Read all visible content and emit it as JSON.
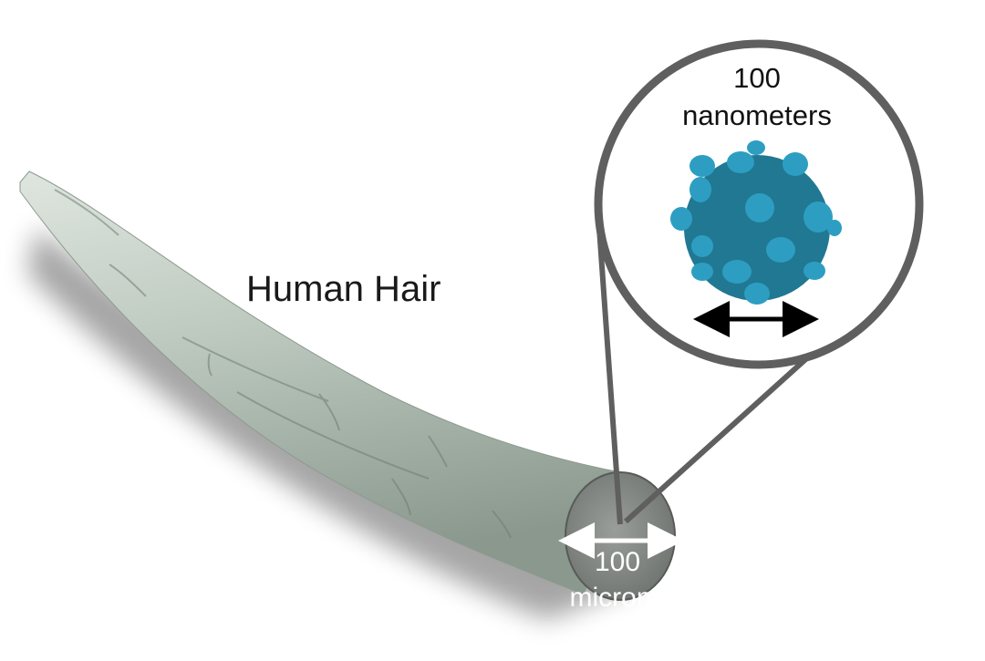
{
  "title": "Human Hair",
  "nanoparticle_label": {
    "value": "100",
    "unit": "nanometers"
  },
  "hair_label": {
    "value": "100",
    "unit": "microns"
  },
  "colors": {
    "hair_light": "#c9d2c9",
    "hair_mid": "#a9b6ac",
    "hair_dark": "#7d8b82",
    "cross_section": "#8a8f8b",
    "particle_core": "#217893",
    "particle_bumps": "#2d9ec2",
    "magnifier_ring": "#5f5f5f",
    "arrow_dark": "#000000",
    "arrow_light": "#ffffff"
  }
}
